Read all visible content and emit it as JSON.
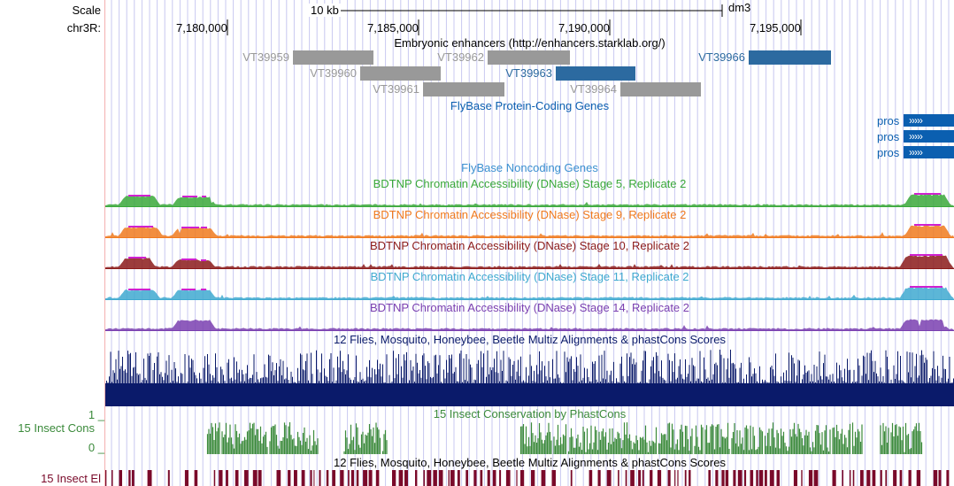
{
  "left_labels": {
    "scale": "Scale",
    "chrom": "chr3R:",
    "insect_cons": "15 Insect Cons",
    "cons_max": "1 _",
    "cons_min": "0 _",
    "insect_el": "15 Insect El"
  },
  "ruler": {
    "scale_label": "10 kb",
    "assembly": "dm3",
    "ticks": [
      "7,180,000",
      "7,185,000",
      "7,190,000",
      "7,195,000"
    ]
  },
  "enhancers": {
    "title": "Embryonic enhancers (http://enhancers.starklab.org/)",
    "items": [
      {
        "label": "VT39959",
        "color": "#999999",
        "label_color": "#999999"
      },
      {
        "label": "VT39960",
        "color": "#999999",
        "label_color": "#999999"
      },
      {
        "label": "VT39961",
        "color": "#999999",
        "label_color": "#999999"
      },
      {
        "label": "VT39962",
        "color": "#999999",
        "label_color": "#999999"
      },
      {
        "label": "VT39963",
        "color": "#2c6aa0",
        "label_color": "#2c6aa0"
      },
      {
        "label": "VT39964",
        "color": "#999999",
        "label_color": "#999999"
      },
      {
        "label": "VT39966",
        "color": "#2c6aa0",
        "label_color": "#2c6aa0"
      }
    ]
  },
  "protein_genes": {
    "title": "FlyBase Protein-Coding Genes",
    "genes": [
      "pros",
      "pros",
      "pros"
    ],
    "color": "#0b5fb0"
  },
  "noncoding": {
    "title": "FlyBase Noncoding Genes",
    "color": "#3a8fd0"
  },
  "dnase_tracks": [
    {
      "title": "BDTNP Chromatin Accessibility (DNase) Stage 5, Replicate 2",
      "color": "#3aa83a"
    },
    {
      "title": "BDTNP Chromatin Accessibility (DNase) Stage 9, Replicate 2",
      "color": "#f07a1e"
    },
    {
      "title": "BDTNP Chromatin Accessibility (DNase) Stage 10, Replicate 2",
      "color": "#8b1a1a"
    },
    {
      "title": "BDTNP Chromatin Accessibility (DNase) Stage 11, Replicate 2",
      "color": "#3fa9d0"
    },
    {
      "title": "BDTNP Chromatin Accessibility (DNase) Stage 14, Replicate 2",
      "color": "#7a3fb0"
    }
  ],
  "multiz": {
    "title": "12 Flies, Mosquito, Honeybee, Beetle Multiz Alignments & phastCons Scores",
    "color": "#0a1a6a"
  },
  "phastcons": {
    "title": "15 Insect Conservation by PhastCons",
    "color": "#3b8a3b"
  },
  "elements": {
    "title": "12 Flies, Mosquito, Honeybee, Beetle Multiz Alignments & phastCons Scores",
    "color": "#7a0a2a"
  },
  "colors": {
    "peak_cap": "#d020d0",
    "grid": "#c8c8f0",
    "left_border": "#f4b0b0"
  }
}
